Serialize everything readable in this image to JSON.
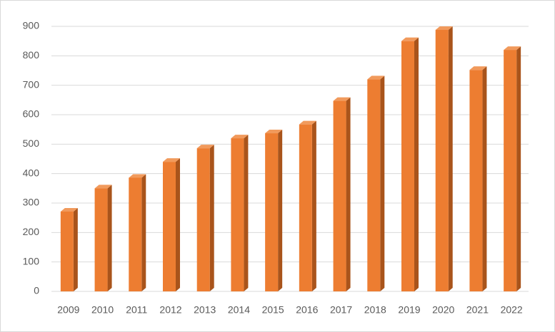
{
  "chart_data": {
    "type": "bar3d",
    "categories": [
      "2009",
      "2010",
      "2011",
      "2012",
      "2013",
      "2014",
      "2015",
      "2016",
      "2017",
      "2018",
      "2019",
      "2020",
      "2021",
      "2022"
    ],
    "values": [
      271,
      350,
      386,
      440,
      486,
      520,
      537,
      567,
      647,
      720,
      850,
      888,
      752,
      820
    ],
    "color": "#ed7d31",
    "ylim": [
      0,
      900
    ],
    "yticks": [
      0,
      100,
      200,
      300,
      400,
      500,
      600,
      700,
      800,
      900
    ],
    "grid": true
  }
}
